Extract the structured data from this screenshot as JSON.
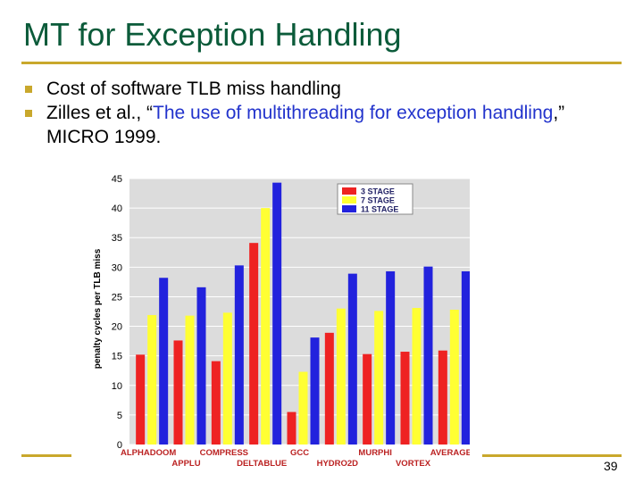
{
  "slide": {
    "title": "MT for Exception Handling",
    "bullets": [
      {
        "text": "Cost of software TLB miss handling"
      },
      {
        "prefix": "Zilles et al., “",
        "link": "The use of multithreading for exception handling",
        "suffix": ",” MICRO 1999."
      }
    ],
    "page_number": "39"
  },
  "colors": {
    "title": "#0b5b3a",
    "accent": "#c9a82c",
    "link": "#2233cc"
  },
  "chart_data": {
    "type": "bar",
    "ylabel": "penalty cycles per TLB miss",
    "ylim": [
      0,
      45
    ],
    "yticks": [
      0,
      5,
      10,
      15,
      20,
      25,
      30,
      35,
      40,
      45
    ],
    "categories": [
      "ALPHADOOM",
      "APPLU",
      "COMPRESS",
      "DELTABLUE",
      "GCC",
      "HYDRO2D",
      "MURPHI",
      "VORTEX",
      "AVERAGE"
    ],
    "series": [
      {
        "name": "3 STAGE",
        "color": "#ee2222",
        "values": [
          15.2,
          17.6,
          14.1,
          34.1,
          5.5,
          18.9,
          15.3,
          15.7,
          15.9
        ]
      },
      {
        "name": "7 STAGE",
        "color": "#ffff33",
        "values": [
          21.9,
          21.8,
          22.3,
          40.0,
          12.3,
          23.0,
          22.6,
          23.1,
          22.8
        ]
      },
      {
        "name": "11 STAGE",
        "color": "#2222dd",
        "values": [
          28.2,
          26.6,
          30.3,
          44.3,
          18.1,
          28.9,
          29.3,
          30.1,
          29.3
        ]
      }
    ],
    "legend": "top-right",
    "grid": true
  }
}
